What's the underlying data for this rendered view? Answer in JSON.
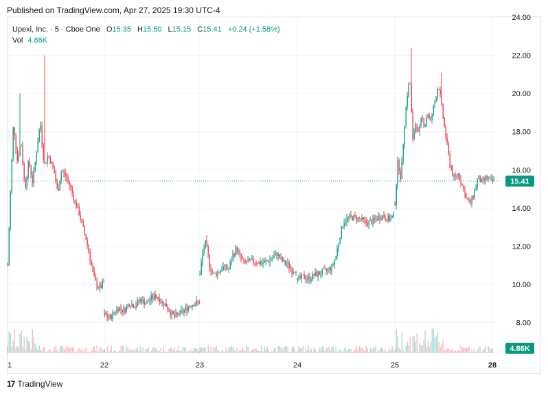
{
  "header": {
    "published": "Published on TradingView.com, Apr 27, 2025 19:30 UTC-4"
  },
  "legend": {
    "symbol": "Upexi, Inc. · 5 · Cboe One",
    "o_label": "O",
    "o_value": "15.35",
    "h_label": "H",
    "h_value": "15.50",
    "l_label": "L",
    "l_value": "15.15",
    "c_label": "C",
    "c_value": "15.41",
    "change": "+0.24 (+1.58%)",
    "vol_label": "Vol",
    "vol_value": "4.86K"
  },
  "footer": {
    "brand": "TradingView",
    "logo_glyph": "17"
  },
  "colors": {
    "up": "#089981",
    "down": "#f23645",
    "grid": "#f0f3fa",
    "axis_text": "#131722",
    "price_line": "#089981"
  },
  "chart_data": {
    "type": "candlestick",
    "y_axis_ticks": [
      "24.00",
      "22.00",
      "20.00",
      "18.00",
      "16.00",
      "14.00",
      "12.00",
      "10.00",
      "8.00"
    ],
    "ylim": [
      6.4,
      24.0
    ],
    "x_axis_ticks": [
      "1",
      "22",
      "23",
      "24",
      "25",
      "28"
    ],
    "last_price": 15.41,
    "last_price_label": "15.41",
    "last_volume_label": "4.86K",
    "series": [
      {
        "day": "1",
        "path": [
          [
            0.0,
            11.0
          ],
          [
            0.03,
            15.0
          ],
          [
            0.06,
            18.5
          ],
          [
            0.1,
            16.5
          ],
          [
            0.14,
            17.5
          ],
          [
            0.18,
            15.0
          ],
          [
            0.22,
            16.5
          ],
          [
            0.26,
            15.3
          ],
          [
            0.3,
            17.0
          ],
          [
            0.34,
            18.5
          ],
          [
            0.38,
            16.2
          ],
          [
            0.42,
            16.8
          ],
          [
            0.48,
            16.0
          ],
          [
            0.52,
            14.8
          ],
          [
            0.56,
            16.0
          ],
          [
            0.62,
            15.5
          ],
          [
            0.66,
            15.0
          ],
          [
            0.7,
            14.3
          ],
          [
            0.74,
            13.8
          ],
          [
            0.78,
            13.0
          ],
          [
            0.82,
            12.3
          ],
          [
            0.86,
            11.3
          ],
          [
            0.89,
            10.5
          ],
          [
            0.92,
            10.0
          ],
          [
            0.96,
            9.8
          ],
          [
            1.0,
            10.1
          ]
        ],
        "spikes": [
          [
            0.13,
            20.0
          ],
          [
            0.38,
            22.0
          ]
        ]
      },
      {
        "day": "22",
        "path": [
          [
            0.0,
            8.4
          ],
          [
            0.05,
            8.2
          ],
          [
            0.1,
            8.5
          ],
          [
            0.15,
            8.8
          ],
          [
            0.2,
            8.6
          ],
          [
            0.26,
            9.0
          ],
          [
            0.32,
            8.9
          ],
          [
            0.38,
            9.2
          ],
          [
            0.44,
            9.0
          ],
          [
            0.5,
            9.3
          ],
          [
            0.55,
            9.4
          ],
          [
            0.6,
            9.1
          ],
          [
            0.65,
            8.9
          ],
          [
            0.7,
            8.5
          ],
          [
            0.74,
            8.3
          ],
          [
            0.8,
            8.5
          ],
          [
            0.86,
            8.7
          ],
          [
            0.9,
            8.9
          ],
          [
            0.94,
            9.0
          ],
          [
            1.0,
            9.05
          ]
        ],
        "spikes": []
      },
      {
        "day": "23",
        "path": [
          [
            0.0,
            10.5
          ],
          [
            0.03,
            11.7
          ],
          [
            0.06,
            12.2
          ],
          [
            0.1,
            11.0
          ],
          [
            0.14,
            10.5
          ],
          [
            0.18,
            10.6
          ],
          [
            0.24,
            10.9
          ],
          [
            0.3,
            10.8
          ],
          [
            0.34,
            11.5
          ],
          [
            0.38,
            11.9
          ],
          [
            0.42,
            11.4
          ],
          [
            0.46,
            11.1
          ],
          [
            0.52,
            11.2
          ],
          [
            0.58,
            11.2
          ],
          [
            0.64,
            11.1
          ],
          [
            0.7,
            11.2
          ],
          [
            0.76,
            11.4
          ],
          [
            0.8,
            11.6
          ],
          [
            0.84,
            11.3
          ],
          [
            0.88,
            11.1
          ],
          [
            0.92,
            11.0
          ],
          [
            0.96,
            10.7
          ],
          [
            1.0,
            10.8
          ]
        ],
        "spikes": []
      },
      {
        "day": "24",
        "path": [
          [
            0.0,
            10.2
          ],
          [
            0.06,
            10.4
          ],
          [
            0.12,
            10.3
          ],
          [
            0.18,
            10.5
          ],
          [
            0.24,
            10.6
          ],
          [
            0.3,
            10.7
          ],
          [
            0.36,
            10.9
          ],
          [
            0.4,
            11.5
          ],
          [
            0.44,
            12.5
          ],
          [
            0.48,
            13.3
          ],
          [
            0.54,
            13.5
          ],
          [
            0.6,
            13.5
          ],
          [
            0.66,
            13.4
          ],
          [
            0.72,
            13.2
          ],
          [
            0.78,
            13.3
          ],
          [
            0.84,
            13.5
          ],
          [
            0.88,
            13.6
          ],
          [
            0.92,
            13.5
          ],
          [
            0.96,
            13.4
          ],
          [
            1.0,
            13.6
          ]
        ],
        "spikes": []
      },
      {
        "day": "25",
        "path": [
          [
            0.0,
            14.3
          ],
          [
            0.03,
            16.5
          ],
          [
            0.06,
            15.5
          ],
          [
            0.09,
            18.0
          ],
          [
            0.12,
            19.8
          ],
          [
            0.15,
            20.8
          ],
          [
            0.18,
            17.5
          ],
          [
            0.21,
            18.5
          ],
          [
            0.24,
            17.8
          ],
          [
            0.27,
            18.8
          ],
          [
            0.3,
            18.3
          ],
          [
            0.33,
            19.0
          ],
          [
            0.36,
            18.5
          ],
          [
            0.4,
            19.5
          ],
          [
            0.44,
            20.5
          ],
          [
            0.48,
            19.0
          ],
          [
            0.52,
            17.5
          ],
          [
            0.56,
            16.2
          ],
          [
            0.6,
            15.5
          ],
          [
            0.64,
            15.8
          ],
          [
            0.68,
            15.2
          ],
          [
            0.72,
            14.5
          ],
          [
            0.76,
            14.2
          ],
          [
            0.8,
            14.8
          ],
          [
            0.84,
            15.6
          ],
          [
            0.88,
            15.3
          ],
          [
            0.92,
            15.6
          ],
          [
            0.96,
            15.4
          ],
          [
            1.0,
            15.41
          ]
        ],
        "spikes": [
          [
            0.16,
            22.4
          ],
          [
            0.47,
            21.1
          ]
        ]
      }
    ]
  }
}
